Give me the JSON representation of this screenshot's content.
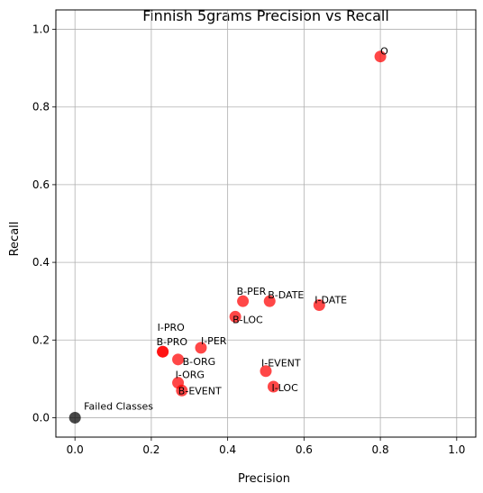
{
  "chart_data": {
    "type": "scatter",
    "title": "Finnish 5grams Precision vs Recall",
    "xlabel": "Precision",
    "ylabel": "Recall",
    "xlim": [
      -0.05,
      1.05
    ],
    "ylim": [
      -0.05,
      1.05
    ],
    "xticks": [
      0.0,
      0.2,
      0.4,
      0.6,
      0.8,
      1.0
    ],
    "yticks": [
      0.0,
      0.2,
      0.4,
      0.6,
      0.8,
      1.0
    ],
    "xtick_labels": [
      "0.0",
      "0.2",
      "0.4",
      "0.6",
      "0.8",
      "1.0"
    ],
    "ytick_labels": [
      "0.0",
      "0.2",
      "0.4",
      "0.6",
      "0.8",
      "1.0"
    ],
    "grid": true,
    "colors": {
      "class_point": "#ff0000",
      "failed_point": "#000000",
      "grid": "#b0b0b0"
    },
    "points": [
      {
        "label": "O",
        "x": 0.8,
        "y": 0.93,
        "group": "class"
      },
      {
        "label": "B-PER",
        "x": 0.44,
        "y": 0.3,
        "group": "class"
      },
      {
        "label": "B-DATE",
        "x": 0.51,
        "y": 0.3,
        "group": "class"
      },
      {
        "label": "I-DATE",
        "x": 0.64,
        "y": 0.29,
        "group": "class"
      },
      {
        "label": "B-LOC",
        "x": 0.42,
        "y": 0.26,
        "group": "class"
      },
      {
        "label": "I-PRO",
        "x": 0.23,
        "y": 0.17,
        "group": "class"
      },
      {
        "label": "B-PRO",
        "x": 0.23,
        "y": 0.17,
        "group": "class"
      },
      {
        "label": "I-PER",
        "x": 0.33,
        "y": 0.18,
        "group": "class"
      },
      {
        "label": "B-ORG",
        "x": 0.27,
        "y": 0.15,
        "group": "class"
      },
      {
        "label": "I-EVENT",
        "x": 0.5,
        "y": 0.12,
        "group": "class"
      },
      {
        "label": "I-ORG",
        "x": 0.27,
        "y": 0.09,
        "group": "class"
      },
      {
        "label": "I-LOC",
        "x": 0.52,
        "y": 0.08,
        "group": "class"
      },
      {
        "label": "B-EVENT",
        "x": 0.28,
        "y": 0.07,
        "group": "class"
      },
      {
        "label": "Failed Classes",
        "x": 0.0,
        "y": 0.0,
        "group": "failed"
      }
    ]
  }
}
